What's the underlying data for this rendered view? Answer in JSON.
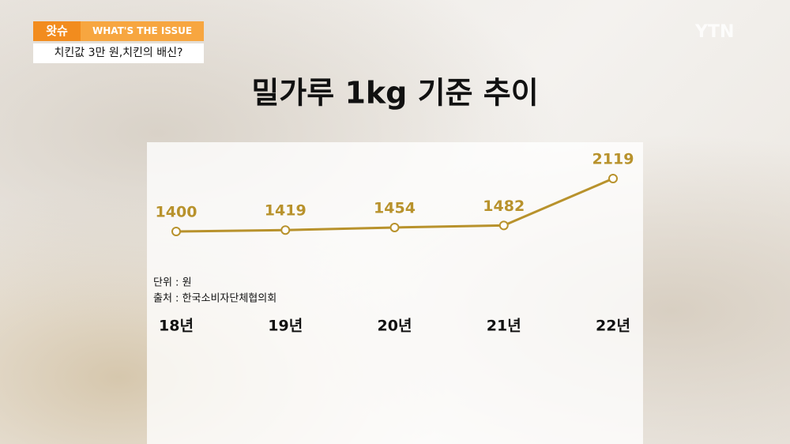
{
  "header": {
    "tag": "왓슈",
    "tag_sub": "WHAT'S THE ISSUE",
    "headline": "치킨값 3만 원,치킨의 배신?",
    "logo": "YTN"
  },
  "chart_data": {
    "type": "line",
    "title": "밀가루 1kg 기준 추이",
    "unit_note": "단위 : 원",
    "source_note": "출처 : 한국소비자단체협의회",
    "categories": [
      "18년",
      "19년",
      "20년",
      "21년",
      "22년"
    ],
    "values": [
      1400,
      1419,
      1454,
      1482,
      2119
    ],
    "color": "#b8922c"
  }
}
